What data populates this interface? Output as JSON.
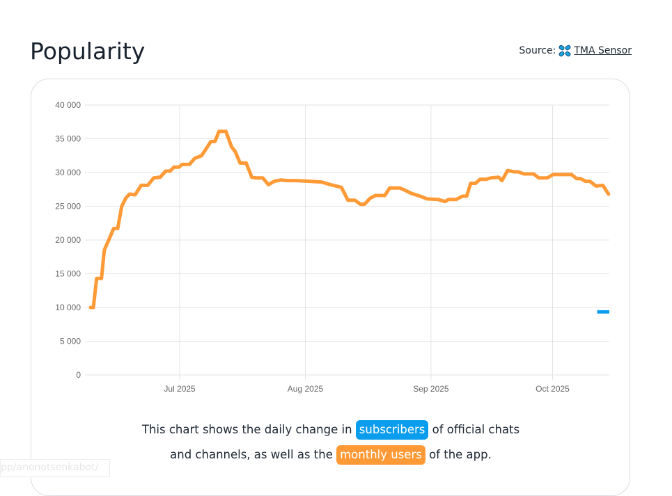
{
  "header": {
    "title": "Popularity",
    "source_label": "Source:",
    "source_link": "TMA Sensor",
    "source_icon": "tma-sensor-logo"
  },
  "caption": {
    "part1": "This chart shows the daily change in ",
    "subscribers": "subscribers",
    "part2": " of official chats and channels, as well as the ",
    "monthly_users": "monthly users",
    "part3": " of the app."
  },
  "status_bar": {
    "url": "pp/anonotsenkabot/"
  },
  "colors": {
    "monthly_users": "#ff9a36",
    "subscribers": "#0b9ded",
    "grid": "#e3e3e3"
  },
  "chart_data": {
    "type": "line",
    "x_start": "2025-06-09",
    "x_unit": "days since start",
    "xlim": [
      0,
      128
    ],
    "ylim": [
      0,
      40000
    ],
    "yticks": [
      0,
      5000,
      10000,
      15000,
      20000,
      25000,
      30000,
      35000,
      40000
    ],
    "ytick_labels": [
      "0",
      "5 000",
      "10 000",
      "15 000",
      "20 000",
      "25 000",
      "30 000",
      "35 000",
      "40 000"
    ],
    "xticks": [
      22,
      53,
      84,
      114
    ],
    "xtick_labels": [
      "Jul 2025",
      "Aug 2025",
      "Sep 2025",
      "Oct 2025"
    ],
    "grid": true,
    "series": [
      {
        "name": "monthly users",
        "color": "#ff9a36",
        "points": [
          [
            0,
            10000
          ],
          [
            0.7,
            10000
          ],
          [
            1.5,
            14300
          ],
          [
            2.7,
            14300
          ],
          [
            3.4,
            18500
          ],
          [
            4.5,
            20000
          ],
          [
            5.7,
            21700
          ],
          [
            6.7,
            21700
          ],
          [
            7.7,
            25000
          ],
          [
            8.7,
            26200
          ],
          [
            9.6,
            26800
          ],
          [
            11,
            26700
          ],
          [
            12.5,
            28100
          ],
          [
            14.1,
            28100
          ],
          [
            15.6,
            29200
          ],
          [
            17.2,
            29300
          ],
          [
            18.5,
            30200
          ],
          [
            19.6,
            30200
          ],
          [
            20.6,
            30800
          ],
          [
            21.8,
            30800
          ],
          [
            22.6,
            31200
          ],
          [
            24.4,
            31200
          ],
          [
            25.7,
            32100
          ],
          [
            27.4,
            32500
          ],
          [
            29.7,
            34600
          ],
          [
            30.7,
            34600
          ],
          [
            31.7,
            36100
          ],
          [
            33.4,
            36100
          ],
          [
            34.8,
            33800
          ],
          [
            35.7,
            33100
          ],
          [
            36.9,
            31400
          ],
          [
            38.4,
            31400
          ],
          [
            39.8,
            29300
          ],
          [
            40.8,
            29200
          ],
          [
            42.5,
            29200
          ],
          [
            43.9,
            28200
          ],
          [
            45.3,
            28700
          ],
          [
            47,
            28900
          ],
          [
            48.4,
            28800
          ],
          [
            51.1,
            28800
          ],
          [
            54,
            28700
          ],
          [
            56.9,
            28600
          ],
          [
            59.2,
            28200
          ],
          [
            61.9,
            27800
          ],
          [
            63.5,
            25900
          ],
          [
            65.2,
            25900
          ],
          [
            66.6,
            25300
          ],
          [
            67.6,
            25300
          ],
          [
            69,
            26200
          ],
          [
            70.3,
            26600
          ],
          [
            72.6,
            26600
          ],
          [
            73.8,
            27700
          ],
          [
            76.3,
            27700
          ],
          [
            77.5,
            27400
          ],
          [
            79.2,
            26900
          ],
          [
            81.3,
            26500
          ],
          [
            83,
            26100
          ],
          [
            85.8,
            26000
          ],
          [
            87.5,
            25700
          ],
          [
            88.3,
            26000
          ],
          [
            90.2,
            26000
          ],
          [
            91.8,
            26500
          ],
          [
            92.8,
            26500
          ],
          [
            93.8,
            28400
          ],
          [
            95,
            28400
          ],
          [
            96.1,
            29000
          ],
          [
            97.6,
            29000
          ],
          [
            98.8,
            29200
          ],
          [
            100.7,
            29300
          ],
          [
            101.5,
            28800
          ],
          [
            102.9,
            30300
          ],
          [
            104.6,
            30100
          ],
          [
            105.5,
            30100
          ],
          [
            106.9,
            29800
          ],
          [
            109.3,
            29800
          ],
          [
            110.6,
            29200
          ],
          [
            112.7,
            29200
          ],
          [
            114.1,
            29700
          ],
          [
            116.6,
            29700
          ],
          [
            118.7,
            29700
          ],
          [
            119.9,
            29100
          ],
          [
            120.9,
            29100
          ],
          [
            122.1,
            28700
          ],
          [
            123.2,
            28700
          ],
          [
            124.7,
            28000
          ],
          [
            126.4,
            28100
          ],
          [
            127.8,
            26800
          ]
        ]
      },
      {
        "name": "subscribers",
        "color": "#0b9ded",
        "type": "bar",
        "bars": [
          {
            "x0": 125,
            "x1": 128,
            "from": 9600,
            "to": 9100
          }
        ]
      }
    ]
  }
}
